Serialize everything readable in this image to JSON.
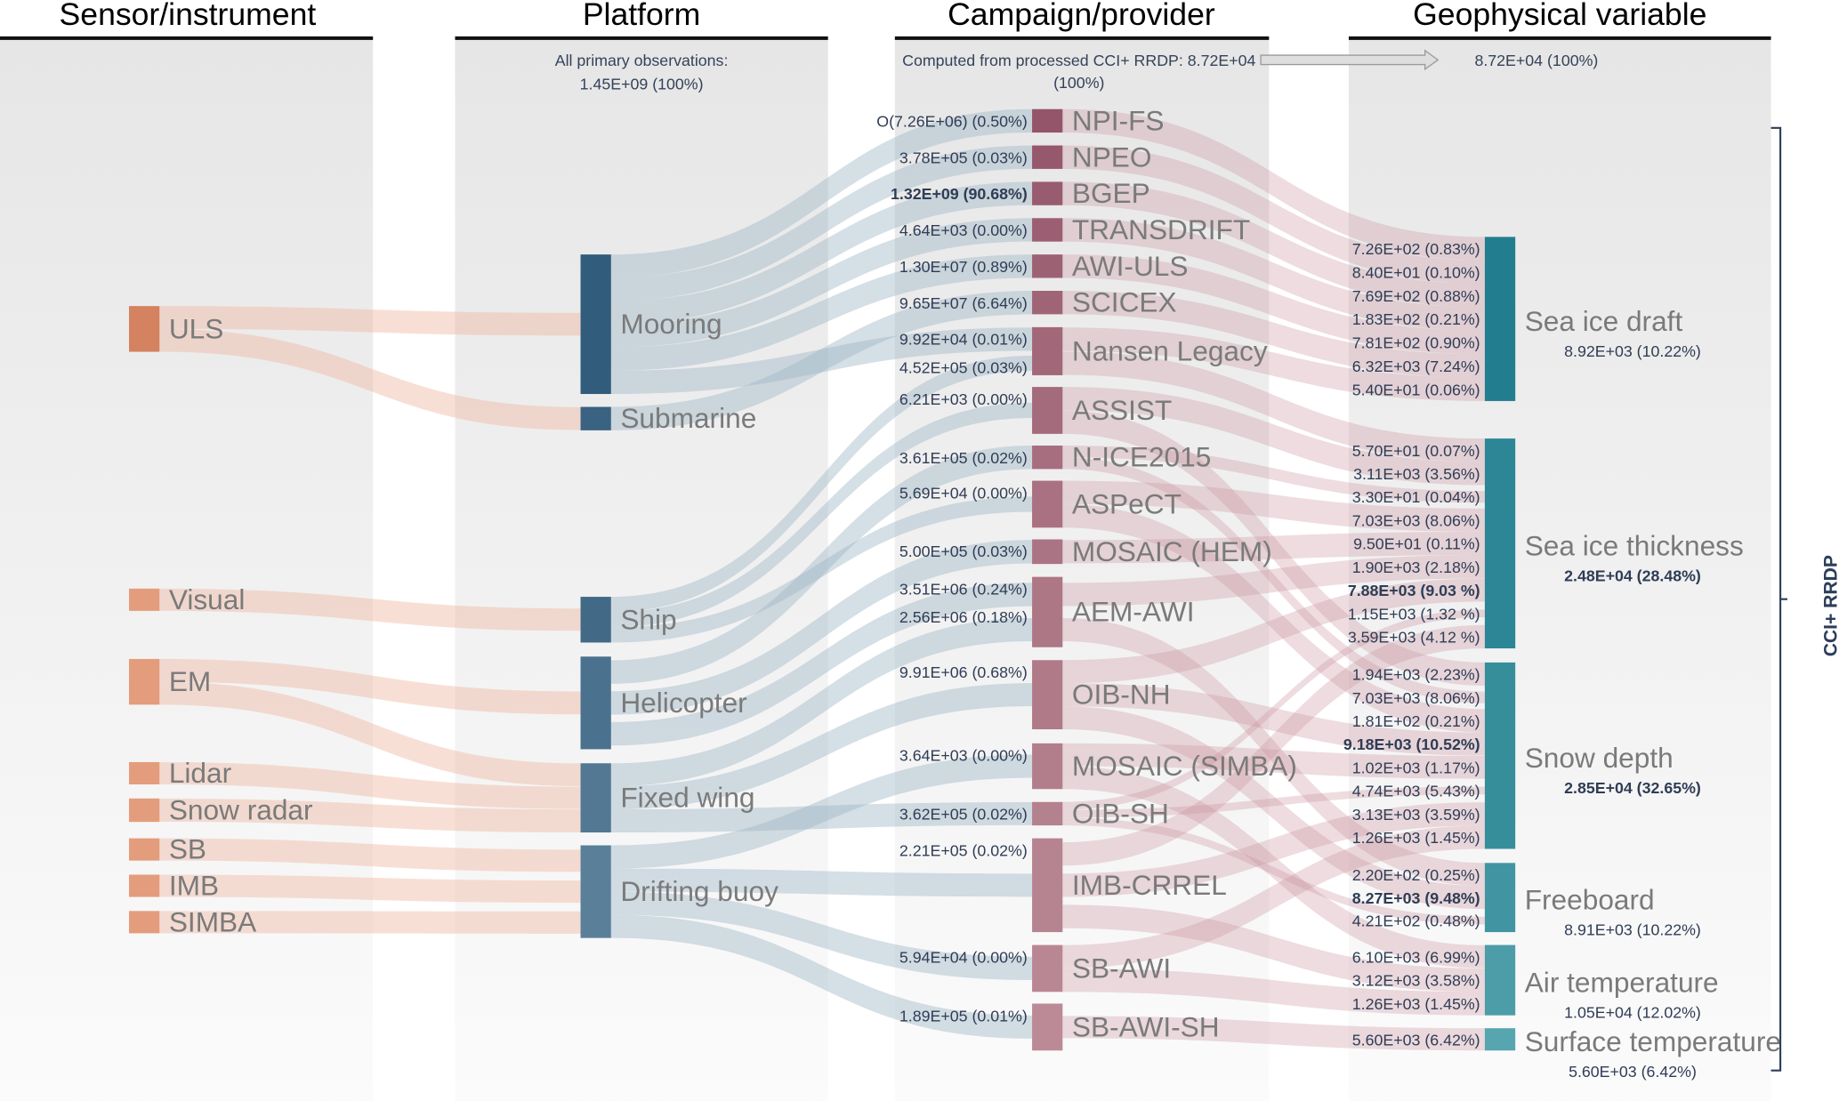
{
  "headers": {
    "sensor": "Sensor/instrument",
    "platform": "Platform",
    "campaign": "Campaign/provider",
    "variable": "Geophysical variable"
  },
  "subtitles": {
    "platform_line1": "All primary observations:",
    "platform_line2": "1.45E+09 (100%)",
    "campaign_line1": "Computed from processed CCI+ RRDP: 8.72E+04",
    "campaign_line2": "(100%)",
    "variable_line1": "8.72E+04 (100%)"
  },
  "bracket_label": "CCI+ RRDP",
  "colors": {
    "sensor": "#e39d7c",
    "sensor_dark": "#d4825f",
    "platform_top": "#325c7b",
    "platform_bottom": "#5a7f99",
    "campaign_top": "#94556a",
    "campaign_bottom": "#bb8a96",
    "variable_top": "#227e8e",
    "variable_bottom": "#56a5af"
  },
  "chart_data": {
    "type": "sankey",
    "sensors": [
      "ULS",
      "Visual",
      "EM",
      "Lidar",
      "Snow radar",
      "SB",
      "IMB",
      "SIMBA"
    ],
    "platforms": [
      "Mooring",
      "Submarine",
      "Ship",
      "Helicopter",
      "Fixed wing",
      "Drifting buoy"
    ],
    "campaigns": [
      {
        "name": "NPI-FS",
        "values": [
          {
            "text": "O(7.26E+06) (0.50%)"
          }
        ]
      },
      {
        "name": "NPEO",
        "values": [
          {
            "text": "3.78E+05 (0.03%)"
          }
        ]
      },
      {
        "name": "BGEP",
        "values": [
          {
            "text": "1.32E+09 (90.68%)",
            "bold": true
          }
        ]
      },
      {
        "name": "TRANSDRIFT",
        "values": [
          {
            "text": "4.64E+03 (0.00%)"
          }
        ]
      },
      {
        "name": "AWI-ULS",
        "values": [
          {
            "text": "1.30E+07 (0.89%)"
          }
        ]
      },
      {
        "name": "SCICEX",
        "values": [
          {
            "text": "9.65E+07 (6.64%)"
          }
        ]
      },
      {
        "name": "Nansen Legacy",
        "values": [
          {
            "text": "9.92E+04 (0.01%)"
          },
          {
            "text": "4.52E+05 (0.03%)"
          }
        ]
      },
      {
        "name": "ASSIST",
        "values": [
          {
            "text": "6.21E+03 (0.00%)"
          }
        ]
      },
      {
        "name": "N-ICE2015",
        "values": [
          {
            "text": "3.61E+05 (0.02%)"
          }
        ]
      },
      {
        "name": "ASPeCT",
        "values": [
          {
            "text": "5.69E+04 (0.00%)"
          }
        ]
      },
      {
        "name": "MOSAIC (HEM)",
        "values": [
          {
            "text": "5.00E+05 (0.03%)"
          }
        ]
      },
      {
        "name": "AEM-AWI",
        "values": [
          {
            "text": "3.51E+06 (0.24%)"
          },
          {
            "text": "2.56E+06 (0.18%)"
          }
        ]
      },
      {
        "name": "OIB-NH",
        "values": [
          {
            "text": "9.91E+06 (0.68%)"
          }
        ]
      },
      {
        "name": "MOSAIC (SIMBA)",
        "values": [
          {
            "text": "3.64E+03 (0.00%)"
          }
        ]
      },
      {
        "name": "OIB-SH",
        "values": [
          {
            "text": "3.62E+05 (0.02%)"
          }
        ]
      },
      {
        "name": "IMB-CRREL",
        "values": [
          {
            "text": "2.21E+05 (0.02%)"
          }
        ]
      },
      {
        "name": "SB-AWI",
        "values": [
          {
            "text": "5.94E+04 (0.00%)"
          }
        ]
      },
      {
        "name": "SB-AWI-SH",
        "values": [
          {
            "text": "1.89E+05 (0.01%)"
          }
        ]
      }
    ],
    "variables": [
      {
        "name": "Sea ice draft",
        "total": "8.92E+03 (10.22%)",
        "total_bold": false,
        "inflows": [
          {
            "text": "7.26E+02 (0.83%)"
          },
          {
            "text": "8.40E+01 (0.10%)"
          },
          {
            "text": "7.69E+02 (0.88%)"
          },
          {
            "text": "1.83E+02 (0.21%)"
          },
          {
            "text": "7.81E+02 (0.90%)"
          },
          {
            "text": "6.32E+03 (7.24%)"
          },
          {
            "text": "5.40E+01 (0.06%)"
          }
        ]
      },
      {
        "name": "Sea ice thickness",
        "total": "2.48E+04 (28.48%)",
        "total_bold": true,
        "inflows": [
          {
            "text": "5.70E+01 (0.07%)"
          },
          {
            "text": "3.11E+03 (3.56%)"
          },
          {
            "text": "3.30E+01 (0.04%)"
          },
          {
            "text": "7.03E+03 (8.06%)"
          },
          {
            "text": "9.50E+01 (0.11%)"
          },
          {
            "text": "1.90E+03 (2.18%)"
          },
          {
            "text": "7.88E+03 (9.03 %)",
            "bold": true
          },
          {
            "text": "1.15E+03 (1.32 %)"
          },
          {
            "text": "3.59E+03 (4.12 %)"
          }
        ]
      },
      {
        "name": "Snow depth",
        "total": "2.85E+04 (32.65%)",
        "total_bold": true,
        "inflows": [
          {
            "text": "1.94E+03 (2.23%)"
          },
          {
            "text": "7.03E+03 (8.06%)"
          },
          {
            "text": "1.81E+02 (0.21%)"
          },
          {
            "text": "9.18E+03 (10.52%)",
            "bold": true
          },
          {
            "text": "1.02E+03 (1.17%)"
          },
          {
            "text": "4.74E+03 (5.43%)"
          },
          {
            "text": "3.13E+03 (3.59%)"
          },
          {
            "text": "1.26E+03 (1.45%)"
          }
        ]
      },
      {
        "name": "Freeboard",
        "total": "8.91E+03 (10.22%)",
        "total_bold": false,
        "inflows": [
          {
            "text": "2.20E+02 (0.25%)"
          },
          {
            "text": "8.27E+03 (9.48%)",
            "bold": true
          },
          {
            "text": "4.21E+02 (0.48%)"
          }
        ]
      },
      {
        "name": "Air temperature",
        "total": "1.05E+04 (12.02%)",
        "total_bold": false,
        "inflows": [
          {
            "text": "6.10E+03 (6.99%)"
          },
          {
            "text": "3.12E+03 (3.58%)"
          },
          {
            "text": "1.26E+03 (1.45%)"
          }
        ]
      },
      {
        "name": "Surface temperature",
        "total": "5.60E+03 (6.42%)",
        "total_bold": false,
        "inflows": [
          {
            "text": "5.60E+03 (6.42%)"
          }
        ]
      }
    ],
    "links": {
      "sensor_platform": [
        [
          "ULS",
          "Mooring"
        ],
        [
          "ULS",
          "Submarine"
        ],
        [
          "Visual",
          "Ship"
        ],
        [
          "EM",
          "Helicopter"
        ],
        [
          "EM",
          "Fixed wing"
        ],
        [
          "Lidar",
          "Fixed wing"
        ],
        [
          "Snow radar",
          "Fixed wing"
        ],
        [
          "SB",
          "Drifting buoy"
        ],
        [
          "IMB",
          "Drifting buoy"
        ],
        [
          "SIMBA",
          "Drifting buoy"
        ]
      ],
      "platform_campaign": [
        [
          "Mooring",
          "NPI-FS"
        ],
        [
          "Mooring",
          "NPEO"
        ],
        [
          "Mooring",
          "BGEP"
        ],
        [
          "Mooring",
          "TRANSDRIFT"
        ],
        [
          "Mooring",
          "AWI-ULS"
        ],
        [
          "Mooring",
          "Nansen Legacy"
        ],
        [
          "Submarine",
          "SCICEX"
        ],
        [
          "Ship",
          "Nansen Legacy"
        ],
        [
          "Ship",
          "ASSIST"
        ],
        [
          "Ship",
          "ASPeCT"
        ],
        [
          "Helicopter",
          "N-ICE2015"
        ],
        [
          "Helicopter",
          "MOSAIC (HEM)"
        ],
        [
          "Helicopter",
          "AEM-AWI"
        ],
        [
          "Fixed wing",
          "AEM-AWI"
        ],
        [
          "Fixed wing",
          "OIB-NH"
        ],
        [
          "Fixed wing",
          "OIB-SH"
        ],
        [
          "Drifting buoy",
          "MOSAIC (SIMBA)"
        ],
        [
          "Drifting buoy",
          "IMB-CRREL"
        ],
        [
          "Drifting buoy",
          "SB-AWI"
        ],
        [
          "Drifting buoy",
          "SB-AWI-SH"
        ]
      ],
      "campaign_variable": [
        [
          "NPI-FS",
          "Sea ice draft"
        ],
        [
          "NPEO",
          "Sea ice draft"
        ],
        [
          "BGEP",
          "Sea ice draft"
        ],
        [
          "TRANSDRIFT",
          "Sea ice draft"
        ],
        [
          "AWI-ULS",
          "Sea ice draft"
        ],
        [
          "SCICEX",
          "Sea ice draft"
        ],
        [
          "Nansen Legacy",
          "Sea ice draft"
        ],
        [
          "Nansen Legacy",
          "Sea ice thickness"
        ],
        [
          "ASSIST",
          "Sea ice thickness"
        ],
        [
          "N-ICE2015",
          "Sea ice thickness"
        ],
        [
          "ASPeCT",
          "Sea ice thickness"
        ],
        [
          "MOSAIC (HEM)",
          "Sea ice thickness"
        ],
        [
          "AEM-AWI",
          "Sea ice thickness"
        ],
        [
          "OIB-NH",
          "Sea ice thickness"
        ],
        [
          "OIB-SH",
          "Sea ice thickness"
        ],
        [
          "IMB-CRREL",
          "Sea ice thickness"
        ],
        [
          "ASSIST",
          "Snow depth"
        ],
        [
          "N-ICE2015",
          "Snow depth"
        ],
        [
          "ASPeCT",
          "Snow depth"
        ],
        [
          "OIB-NH",
          "Snow depth"
        ],
        [
          "MOSAIC (SIMBA)",
          "Snow depth"
        ],
        [
          "OIB-SH",
          "Snow depth"
        ],
        [
          "IMB-CRREL",
          "Snow depth"
        ],
        [
          "SB-AWI",
          "Snow depth"
        ],
        [
          "AEM-AWI",
          "Freeboard"
        ],
        [
          "OIB-NH",
          "Freeboard"
        ],
        [
          "OIB-SH",
          "Freeboard"
        ],
        [
          "MOSAIC (SIMBA)",
          "Air temperature"
        ],
        [
          "IMB-CRREL",
          "Air temperature"
        ],
        [
          "SB-AWI",
          "Air temperature"
        ],
        [
          "SB-AWI-SH",
          "Surface temperature"
        ]
      ]
    }
  }
}
